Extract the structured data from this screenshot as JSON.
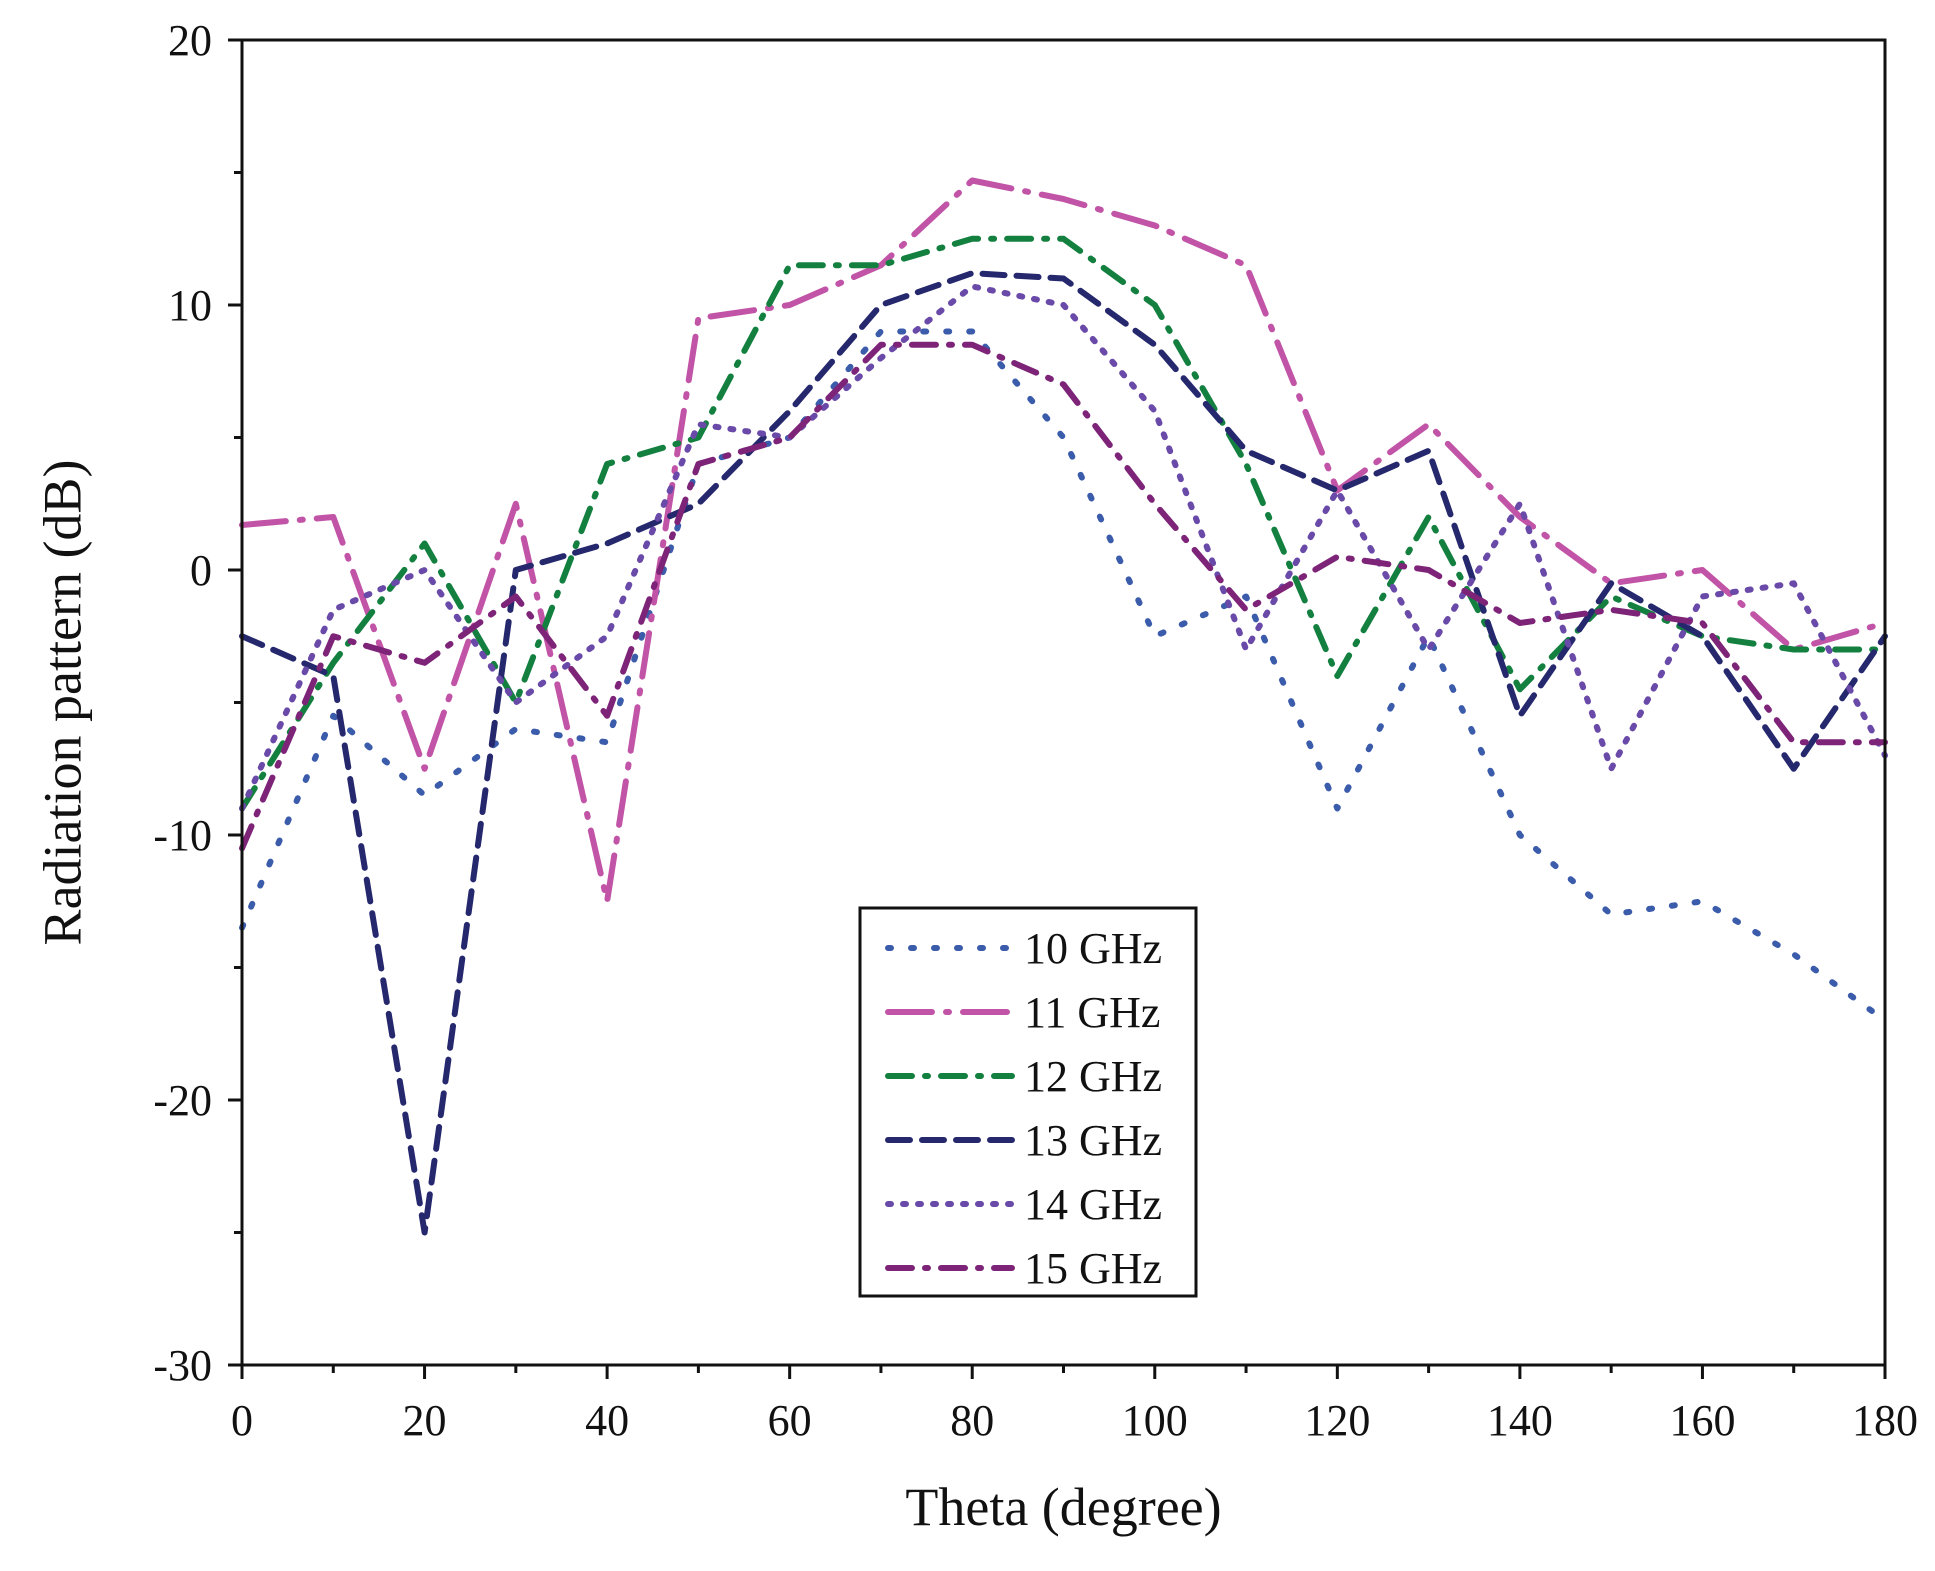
{
  "chart_data": {
    "type": "line",
    "title": "",
    "xlabel": "Theta (degree)",
    "ylabel": "Radiation pattern (dB)",
    "xlim": [
      0,
      180
    ],
    "ylim": [
      -30,
      20
    ],
    "xticks": [
      0,
      20,
      40,
      60,
      80,
      100,
      120,
      140,
      160,
      180
    ],
    "yticks": [
      -30,
      -20,
      -10,
      0,
      10,
      20
    ],
    "grid": false,
    "legend_position": "bottom-center",
    "x": [
      0,
      10,
      20,
      30,
      40,
      50,
      60,
      70,
      80,
      90,
      100,
      110,
      120,
      130,
      140,
      150,
      160,
      170,
      180
    ],
    "series": [
      {
        "name": "10 GHz",
        "color": "#3b5bab",
        "dash": "dot",
        "values": [
          -13.5,
          -5.5,
          -8.5,
          -6,
          -6.5,
          4,
          5,
          9,
          9,
          5,
          -2.5,
          -1,
          -9,
          -2.5,
          -10,
          -13,
          -12.5,
          -14.5,
          -17
        ]
      },
      {
        "name": "11 GHz",
        "color": "#c154a6",
        "dash": "longdashdot",
        "values": [
          1.7,
          2,
          -7.5,
          2.5,
          -12.5,
          9.5,
          10,
          11.5,
          14.7,
          14,
          13,
          11.5,
          3,
          5.5,
          2,
          -0.5,
          0,
          -3,
          -2
        ]
      },
      {
        "name": "12 GHz",
        "color": "#138040",
        "dash": "dashdot",
        "values": [
          -9,
          -3.5,
          1,
          -5,
          4,
          5,
          11.5,
          11.5,
          12.5,
          12.5,
          10,
          4,
          -4,
          2,
          -4.5,
          -1,
          -2.5,
          -3,
          -3
        ]
      },
      {
        "name": "13 GHz",
        "color": "#26286e",
        "dash": "dash",
        "values": [
          -2.5,
          -4,
          -25,
          0,
          1,
          2.5,
          6,
          10,
          11.2,
          11,
          8.5,
          4.5,
          3,
          4.5,
          -5.5,
          -0.5,
          -2.5,
          -7.5,
          -2.5
        ]
      },
      {
        "name": "14 GHz",
        "color": "#6a4aa8",
        "dash": "densedot",
        "values": [
          -9,
          -1.5,
          0,
          -5,
          -2.5,
          5.5,
          5,
          8,
          10.7,
          10,
          6,
          -3,
          3,
          -3,
          2.5,
          -7.5,
          -1,
          -0.5,
          -7
        ]
      },
      {
        "name": "15 GHz",
        "color": "#7d2478",
        "dash": "dashdot",
        "values": [
          -10.5,
          -2.5,
          -3.5,
          -1,
          -5.5,
          4,
          5,
          8.5,
          8.5,
          7,
          2.5,
          -1.5,
          0.5,
          0,
          -2,
          -1.5,
          -2,
          -6.5,
          -6.5
        ]
      }
    ]
  }
}
